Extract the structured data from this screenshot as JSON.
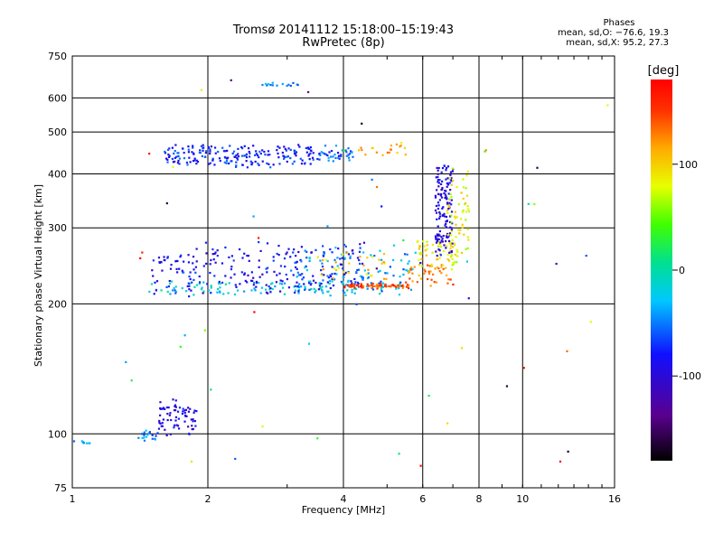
{
  "header": {
    "title": "Tromsø 20141112 15:18:00–15:19:43",
    "subtitle": "RwPretec (8p)"
  },
  "stats": {
    "heading": "Phases",
    "line_o": "mean, sd,O:  −76.6, 19.3",
    "line_x": "mean, sd,X:  95.2, 27.3"
  },
  "chart_data": {
    "type": "scatter",
    "xlabel": "Frequency [MHz]",
    "ylabel": "Stationary phase Virtual Height [km]",
    "x_scale": "log",
    "y_scale": "log",
    "xlim": [
      1,
      16
    ],
    "ylim": [
      75,
      750
    ],
    "x_ticks": [
      1,
      2,
      4,
      6,
      8,
      10,
      16
    ],
    "y_ticks": [
      75,
      100,
      200,
      300,
      400,
      500,
      600,
      750
    ],
    "grid": true,
    "colorbar": {
      "label": "[deg]",
      "range": [
        -180,
        180
      ],
      "ticks": [
        -100,
        0,
        100
      ]
    },
    "traces": [
      {
        "x_from": 1.45,
        "x_to": 5.5,
        "y_from": 210,
        "y_to": 225,
        "phase": -20,
        "n": 110,
        "jitter": 0.012
      },
      {
        "x_from": 1.5,
        "x_to": 4.5,
        "y_from": 215,
        "y_to": 270,
        "phase": -85,
        "n": 240,
        "jitter": 0.08
      },
      {
        "x_from": 3.0,
        "x_to": 5.8,
        "y_from": 215,
        "y_to": 270,
        "phase": -40,
        "n": 100,
        "jitter": 0.08
      },
      {
        "x_from": 4.0,
        "x_to": 5.6,
        "y_from": 218,
        "y_to": 222,
        "phase": 145,
        "n": 70,
        "jitter": 0.01
      },
      {
        "x_from": 5.5,
        "x_to": 7.0,
        "y_from": 222,
        "y_to": 245,
        "phase": 125,
        "n": 40,
        "jitter": 0.02
      },
      {
        "x_from": 3.5,
        "x_to": 5.0,
        "y_from": 230,
        "y_to": 260,
        "phase": 100,
        "n": 30,
        "jitter": 0.06
      },
      {
        "x_from": 5.8,
        "x_to": 7.2,
        "y_from": 240,
        "y_to": 280,
        "phase": 85,
        "n": 60,
        "jitter": 0.04
      },
      {
        "x_from": 1.6,
        "x_to": 3.5,
        "y_from": 420,
        "y_to": 460,
        "phase": -75,
        "n": 200,
        "jitter": 0.05
      },
      {
        "x_from": 3.5,
        "x_to": 4.2,
        "y_from": 430,
        "y_to": 460,
        "phase": -60,
        "n": 40,
        "jitter": 0.03
      },
      {
        "x_from": 4.3,
        "x_to": 5.5,
        "y_from": 440,
        "y_to": 480,
        "phase": 110,
        "n": 20,
        "jitter": 0.04
      },
      {
        "x_from": 6.4,
        "x_to": 7.0,
        "y_from": 260,
        "y_to": 420,
        "phase": -95,
        "n": 140,
        "jitter": 0.02
      },
      {
        "x_from": 6.8,
        "x_to": 7.6,
        "y_from": 260,
        "y_to": 410,
        "phase": 85,
        "n": 60,
        "jitter": 0.03
      },
      {
        "x_from": 2.5,
        "x_to": 3.2,
        "y_from": 640,
        "y_to": 650,
        "phase": -40,
        "n": 15,
        "jitter": 0.02
      },
      {
        "x_from": 1.55,
        "x_to": 1.9,
        "y_from": 100,
        "y_to": 118,
        "phase": -95,
        "n": 70,
        "jitter": 0.06
      },
      {
        "x_from": 1.4,
        "x_to": 1.55,
        "y_from": 97,
        "y_to": 103,
        "phase": -50,
        "n": 18,
        "jitter": 0.03
      },
      {
        "x_from": 1.0,
        "x_to": 1.1,
        "y_from": 94,
        "y_to": 96,
        "phase": -40,
        "n": 8,
        "jitter": 0.01
      },
      {
        "x_from": 1.3,
        "x_to": 16,
        "y_from": 80,
        "y_to": 720,
        "phase": 0,
        "n": 55,
        "jitter": 0.0,
        "scatter": true
      }
    ]
  }
}
